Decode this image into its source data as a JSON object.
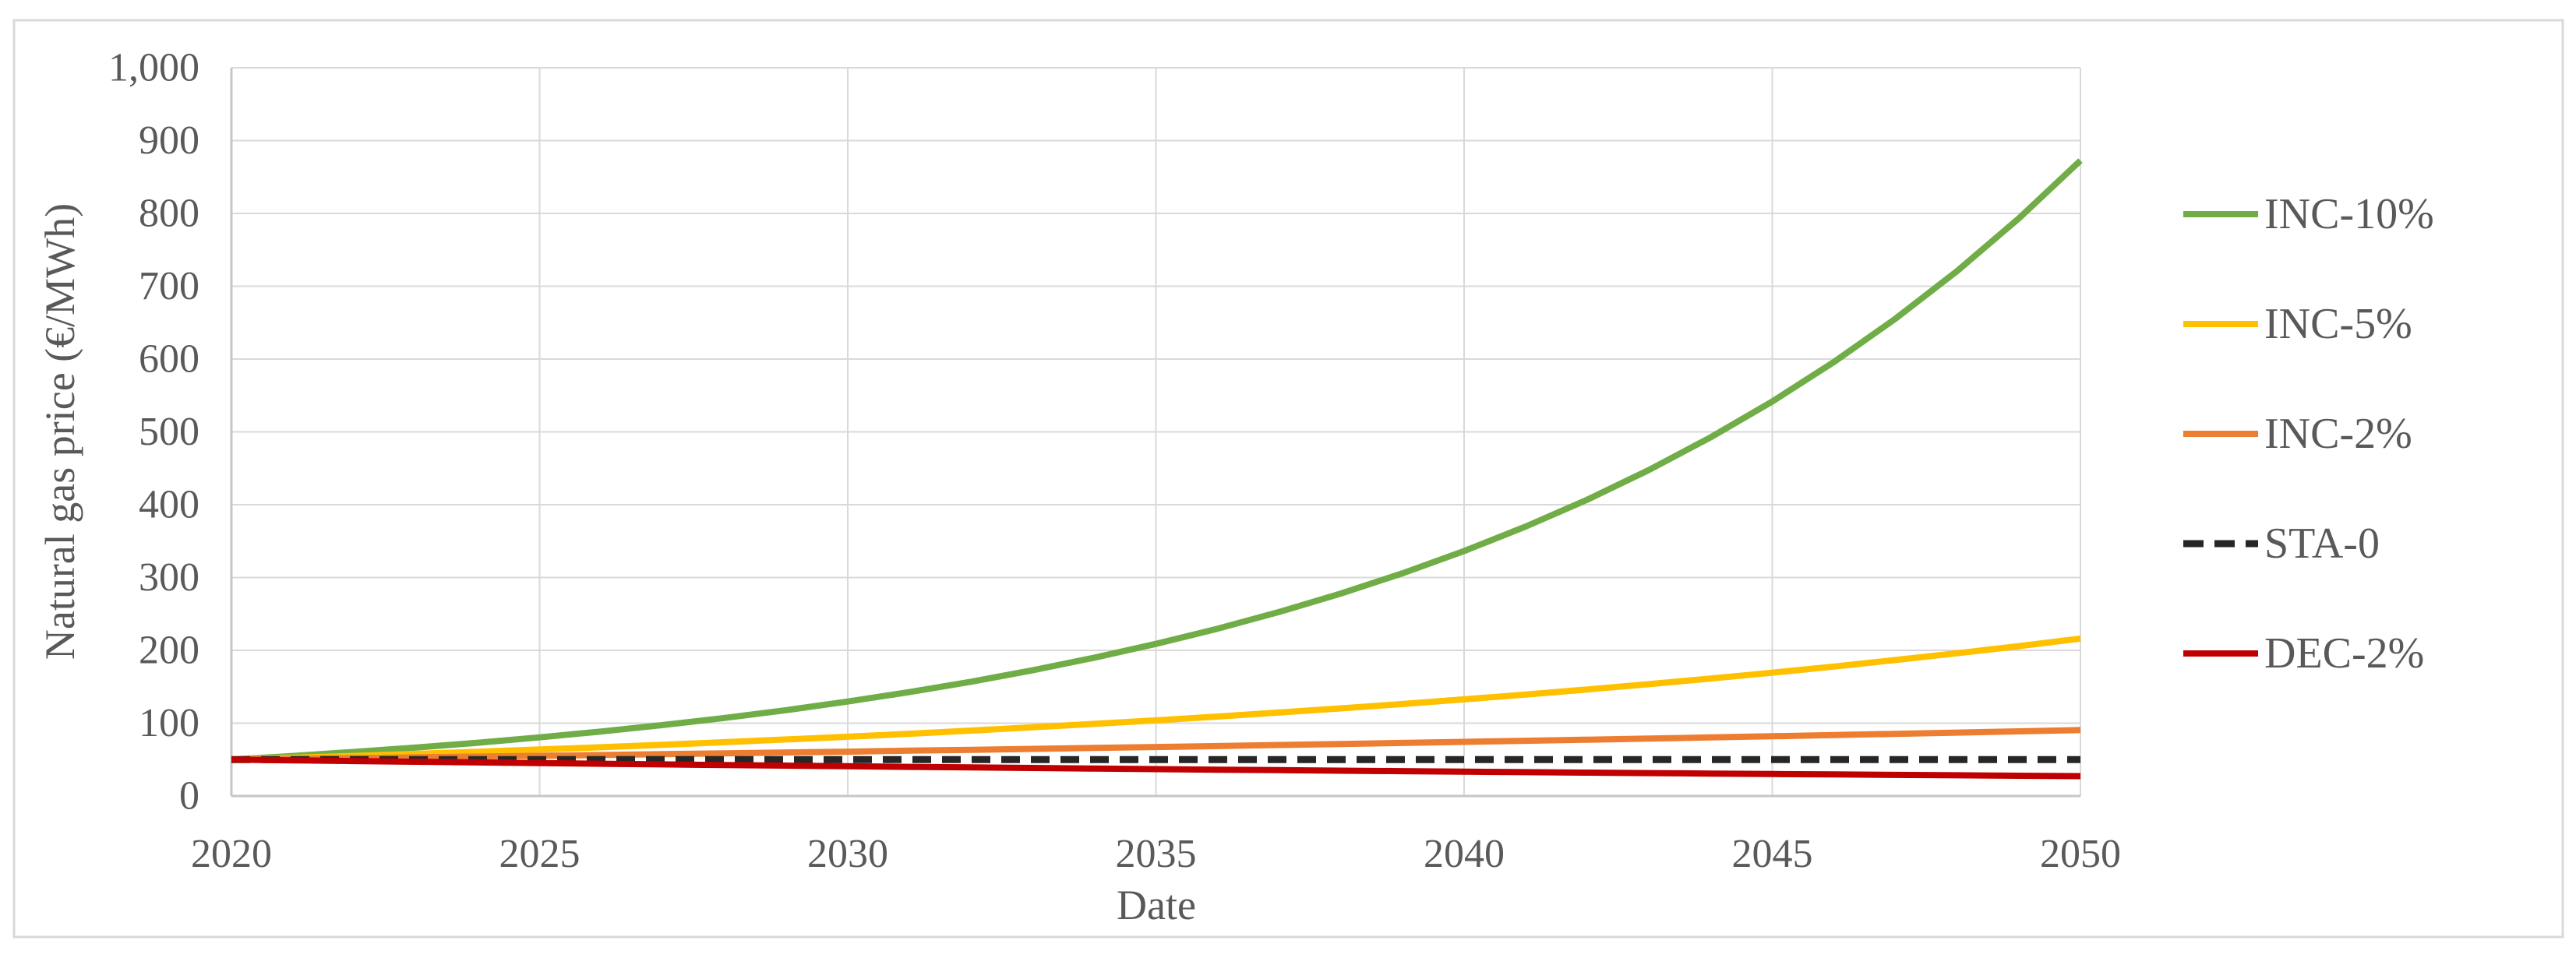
{
  "figure": {
    "background": "#FFFFFF",
    "border_color": "#D9D9D9"
  },
  "chart_data": {
    "type": "line",
    "title": "",
    "xlabel": "Date",
    "ylabel": "Natural gas price (€/MWh)",
    "xlim": [
      2020,
      2050
    ],
    "ylim": [
      0,
      1000
    ],
    "x_ticks": [
      2020,
      2025,
      2030,
      2035,
      2040,
      2045,
      2050
    ],
    "y_tick_values": [
      0,
      100,
      200,
      300,
      400,
      500,
      600,
      700,
      800,
      900,
      1000
    ],
    "y_tick_labels": [
      "0",
      "100",
      "200",
      "300",
      "400",
      "500",
      "600",
      "700",
      "800",
      "900",
      "1,000"
    ],
    "grid": "both",
    "grid_color": "#D9D9D9",
    "axis_color": "#C6C6C6",
    "text_color": "#595959",
    "legend_position": "right",
    "x": [
      2020,
      2021,
      2022,
      2023,
      2024,
      2025,
      2026,
      2027,
      2028,
      2029,
      2030,
      2031,
      2032,
      2033,
      2034,
      2035,
      2036,
      2037,
      2038,
      2039,
      2040,
      2041,
      2042,
      2043,
      2044,
      2045,
      2046,
      2047,
      2048,
      2049,
      2050
    ],
    "series": [
      {
        "name": "INC-10%",
        "color": "#70AD47",
        "style": "solid",
        "values": [
          50,
          55,
          60.5,
          66.6,
          73.2,
          80.5,
          88.6,
          97.4,
          107.2,
          117.9,
          129.7,
          142.7,
          156.9,
          172.6,
          189.9,
          208.9,
          229.7,
          252.7,
          278.0,
          305.8,
          336.4,
          370.0,
          407.0,
          447.7,
          492.5,
          541.7,
          595.9,
          655.5,
          721.0,
          793.2,
          872.5
        ]
      },
      {
        "name": "INC-5%",
        "color": "#FFC000",
        "style": "solid",
        "values": [
          50,
          52.5,
          55.1,
          57.9,
          60.8,
          63.8,
          67.0,
          70.4,
          73.9,
          77.6,
          81.4,
          85.5,
          89.8,
          94.3,
          99.0,
          103.9,
          109.1,
          114.6,
          120.3,
          126.3,
          132.7,
          139.3,
          146.3,
          153.6,
          161.3,
          169.3,
          177.8,
          186.7,
          196.0,
          205.8,
          216.1
        ]
      },
      {
        "name": "INC-2%",
        "color": "#ED7D31",
        "style": "solid",
        "values": [
          50,
          51,
          52.0,
          53.1,
          54.1,
          55.2,
          56.3,
          57.4,
          58.6,
          59.8,
          60.9,
          62.2,
          63.4,
          64.7,
          66.0,
          67.3,
          68.6,
          70.0,
          71.4,
          72.8,
          74.3,
          75.8,
          77.3,
          78.8,
          80.4,
          82.0,
          83.7,
          85.3,
          87.1,
          88.8,
          90.6
        ]
      },
      {
        "name": "STA-0",
        "color": "#262626",
        "style": "dashed",
        "values": [
          50,
          50,
          50,
          50,
          50,
          50,
          50,
          50,
          50,
          50,
          50,
          50,
          50,
          50,
          50,
          50,
          50,
          50,
          50,
          50,
          50,
          50,
          50,
          50,
          50,
          50,
          50,
          50,
          50,
          50,
          50
        ]
      },
      {
        "name": "DEC-2%",
        "color": "#C00000",
        "style": "solid",
        "values": [
          50,
          49,
          48.0,
          47.1,
          46.1,
          45.2,
          44.3,
          43.4,
          42.5,
          41.7,
          40.9,
          40.0,
          39.2,
          38.5,
          37.7,
          36.9,
          36.2,
          35.5,
          34.8,
          34.1,
          33.4,
          32.7,
          32.1,
          31.4,
          30.8,
          30.2,
          29.6,
          29.0,
          28.4,
          27.8,
          27.3
        ]
      }
    ]
  }
}
